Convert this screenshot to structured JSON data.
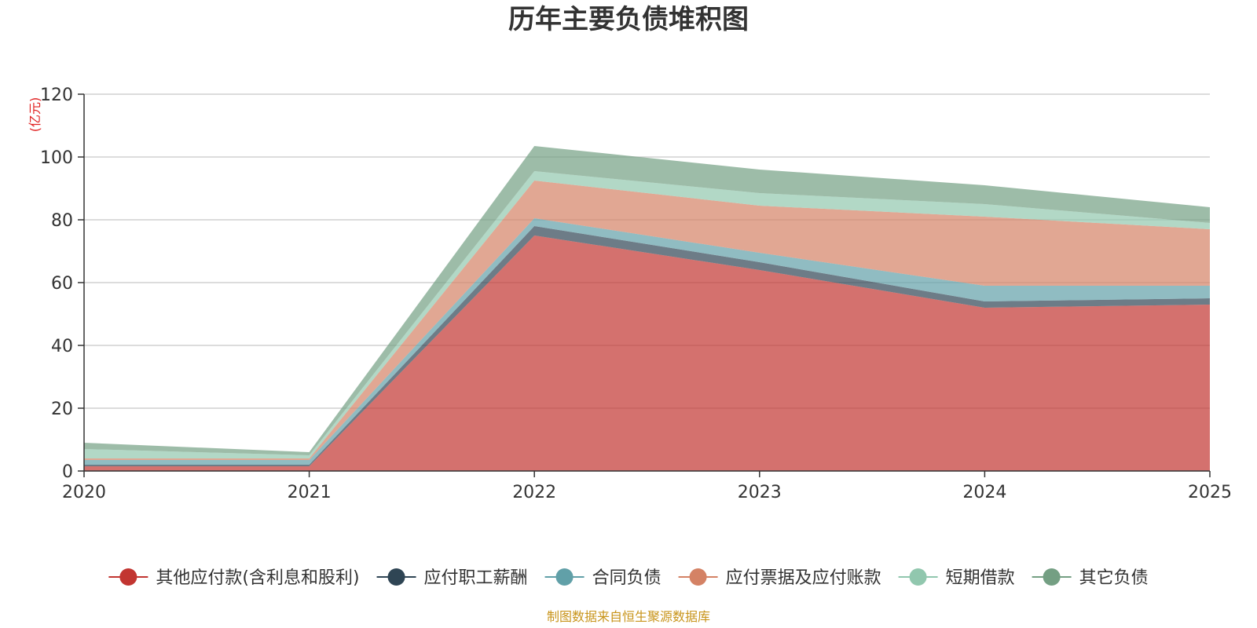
{
  "chart_data": {
    "type": "area",
    "stacked": true,
    "title": "历年主要负债堆积图",
    "unit_label": "(亿元)",
    "x": [
      "2020",
      "2021",
      "2022",
      "2023",
      "2024",
      "2025"
    ],
    "ylim": [
      0,
      120
    ],
    "yticks": [
      "0",
      "20",
      "40",
      "60",
      "80",
      "100",
      "120"
    ],
    "grid": true,
    "legend_position": "bottom",
    "series": [
      {
        "name": "其他应付款(含利息和股利)",
        "color": "#c23531",
        "values": [
          1.5,
          1.5,
          75,
          64,
          52,
          53
        ]
      },
      {
        "name": "应付职工薪酬",
        "color": "#2f4554",
        "values": [
          0.5,
          0.5,
          3,
          2.5,
          2,
          2
        ]
      },
      {
        "name": "合同负债",
        "color": "#61a0a8",
        "values": [
          1.5,
          1.5,
          2.5,
          3,
          5,
          4
        ]
      },
      {
        "name": "应付票据及应付账款",
        "color": "#d48265",
        "values": [
          0.5,
          0.5,
          12,
          15,
          22,
          18
        ]
      },
      {
        "name": "短期借款",
        "color": "#91c7ae",
        "values": [
          3,
          1,
          3,
          4,
          4,
          2
        ]
      },
      {
        "name": "其它负债",
        "color": "#749f83",
        "values": [
          2,
          1,
          8,
          7.5,
          6,
          5
        ]
      }
    ],
    "source": "制图数据来自恒生聚源数据库"
  }
}
